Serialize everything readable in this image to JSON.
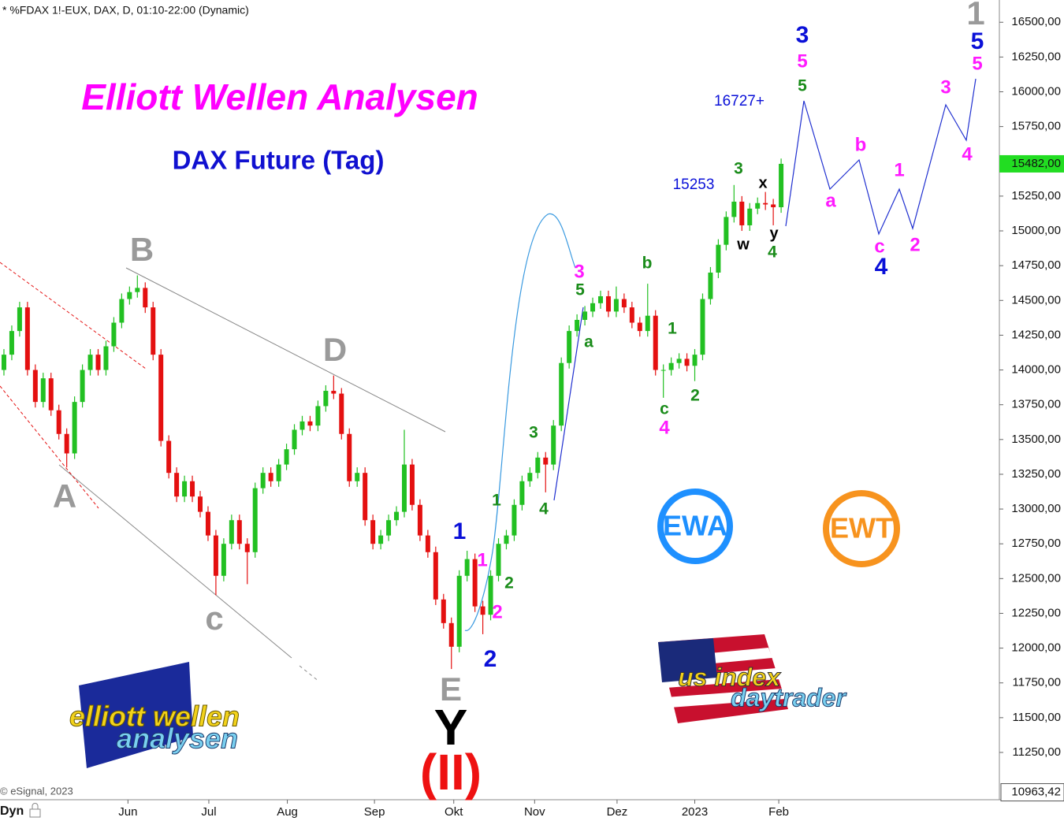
{
  "header": "* %FDAX 1!-EUX, DAX, D, 01:10-22:00 (Dynamic)",
  "copyright": "© eSignal, 2023",
  "dyn_label": "Dyn",
  "logos": {
    "ewa": "EWA",
    "ewt": "EWT",
    "ew_top": "elliott wellen",
    "ew_bottom": "analysen",
    "us_top": "us index",
    "us_bottom": "daytrader"
  },
  "chart_data": {
    "type": "candlestick",
    "title": "Elliott Wellen Analysen",
    "subtitle": "DAX Future (Tag)",
    "x": [
      0,
      1,
      2,
      3,
      4,
      5,
      6,
      7,
      8,
      9,
      10,
      11,
      12,
      13,
      14,
      15,
      16,
      17,
      18,
      19,
      20,
      21,
      22,
      23,
      24,
      25,
      26,
      27,
      28,
      29,
      30,
      31,
      32,
      33,
      34,
      35,
      36,
      37,
      38,
      39,
      40,
      41,
      42,
      43,
      44,
      45,
      46,
      47,
      48,
      49,
      50,
      51,
      52,
      53,
      54,
      55,
      56,
      57,
      58,
      59,
      60,
      61,
      62,
      63,
      64,
      65,
      66,
      67,
      68,
      69,
      70,
      71,
      72,
      73,
      74,
      75,
      76,
      77,
      78,
      79,
      80,
      81,
      82,
      83,
      84,
      85,
      86,
      87,
      88,
      89,
      90,
      91,
      92,
      93,
      94,
      95,
      96,
      97,
      98,
      99
    ],
    "open": [
      14000,
      14110,
      14280,
      14450,
      14000,
      13770,
      13940,
      13710,
      13540,
      13400,
      13770,
      14000,
      14110,
      14000,
      14170,
      14340,
      14510,
      14560,
      14590,
      14450,
      14110,
      13490,
      13260,
      13090,
      13200,
      13090,
      12980,
      12810,
      12520,
      12750,
      12920,
      12750,
      12690,
      13150,
      13260,
      13200,
      13320,
      13430,
      13570,
      13630,
      13600,
      13740,
      13850,
      13830,
      13540,
      13200,
      13260,
      12920,
      12750,
      12810,
      12920,
      12980,
      13320,
      13030,
      12810,
      12690,
      12350,
      12180,
      12010,
      12520,
      12640,
      12300,
      12240,
      12520,
      12750,
      12810,
      13030,
      13200,
      13260,
      13370,
      13320,
      13600,
      14050,
      14280,
      14360,
      14420,
      14480,
      14530,
      14420,
      14510,
      14450,
      14340,
      14280,
      14390,
      14000,
      14000,
      14050,
      14080,
      14030,
      14110,
      14510,
      14700,
      14900,
      15100,
      15210,
      15040,
      15160,
      15200,
      15190,
      15170
    ],
    "high": [
      14150,
      14320,
      14490,
      14490,
      14040,
      13980,
      13980,
      13750,
      13580,
      13810,
      14040,
      14150,
      14150,
      14210,
      14380,
      14550,
      14600,
      14680,
      14630,
      14490,
      14150,
      13530,
      13300,
      13240,
      13240,
      13130,
      13020,
      12850,
      12790,
      12960,
      12960,
      12790,
      13190,
      13300,
      13300,
      13360,
      13470,
      13610,
      13670,
      13670,
      13780,
      13890,
      13960,
      13870,
      13580,
      13300,
      13300,
      12960,
      12850,
      12960,
      13020,
      13570,
      13360,
      13070,
      12850,
      12730,
      12390,
      12220,
      12560,
      12700,
      12680,
      12340,
      12560,
      12790,
      12850,
      13070,
      13240,
      13300,
      13410,
      13410,
      13640,
      14090,
      14320,
      14400,
      14460,
      14520,
      14570,
      14570,
      14600,
      14550,
      14490,
      14380,
      14620,
      14430,
      14040,
      14090,
      14120,
      14120,
      14150,
      14550,
      14740,
      14940,
      15140,
      15330,
      15250,
      15200,
      15240,
      15280,
      15230,
      15520
    ],
    "low": [
      13960,
      14070,
      14240,
      13960,
      13730,
      13730,
      13670,
      13500,
      13300,
      13360,
      13730,
      13960,
      13960,
      13960,
      14130,
      14300,
      14470,
      14520,
      14410,
      14070,
      13450,
      13220,
      13050,
      13050,
      13050,
      12940,
      12770,
      12380,
      12480,
      12710,
      12710,
      12460,
      12650,
      13110,
      13160,
      13160,
      13280,
      13390,
      13530,
      13560,
      13560,
      13700,
      13790,
      13500,
      13160,
      13160,
      12880,
      12710,
      12710,
      12770,
      12880,
      12940,
      12990,
      12770,
      12650,
      12310,
      12140,
      11850,
      11970,
      12480,
      12260,
      12100,
      12200,
      12480,
      12710,
      12770,
      12990,
      13160,
      13220,
      13120,
      13280,
      13560,
      14010,
      14240,
      14320,
      14380,
      14440,
      14380,
      14380,
      14410,
      14300,
      14240,
      14240,
      13960,
      13800,
      13960,
      14010,
      13990,
      13920,
      14070,
      14470,
      14660,
      14860,
      15060,
      15000,
      15000,
      15120,
      15150,
      15040,
      15130
    ],
    "close": [
      14110,
      14280,
      14450,
      14000,
      13770,
      13940,
      13710,
      13540,
      13400,
      13770,
      14000,
      14110,
      14000,
      14170,
      14340,
      14510,
      14560,
      14590,
      14450,
      14110,
      13490,
      13260,
      13090,
      13200,
      13090,
      12980,
      12810,
      12520,
      12750,
      12920,
      12750,
      12690,
      13150,
      13260,
      13200,
      13320,
      13430,
      13570,
      13630,
      13600,
      13740,
      13850,
      13830,
      13540,
      13200,
      13260,
      12920,
      12750,
      12810,
      12920,
      12980,
      13320,
      13030,
      12810,
      12690,
      12350,
      12180,
      12010,
      12520,
      12640,
      12300,
      12240,
      12520,
      12750,
      12810,
      13030,
      13200,
      13260,
      13370,
      13320,
      13600,
      14050,
      14280,
      14360,
      14420,
      14480,
      14530,
      14420,
      14510,
      14450,
      14340,
      14280,
      14390,
      14000,
      14000,
      14050,
      14080,
      14030,
      14110,
      14510,
      14700,
      14900,
      15100,
      15210,
      15040,
      15160,
      15200,
      15190,
      15170,
      15482
    ],
    "up_color": "#22c022",
    "down_color": "#e41010",
    "xlim": [
      -0.5,
      126.8
    ],
    "xticks": [
      {
        "value": 15.8,
        "label": "Jun"
      },
      {
        "value": 26.1,
        "label": "Jul"
      },
      {
        "value": 36.1,
        "label": "Aug"
      },
      {
        "value": 47.2,
        "label": "Sep"
      },
      {
        "value": 57.3,
        "label": "Okt"
      },
      {
        "value": 67.6,
        "label": "Nov"
      },
      {
        "value": 78.1,
        "label": "Dez"
      },
      {
        "value": 88.0,
        "label": "2023"
      },
      {
        "value": 98.7,
        "label": "Feb"
      }
    ],
    "ylim": [
      10910,
      16660
    ],
    "yticks": [
      {
        "value": 16500,
        "label": "16500,00"
      },
      {
        "value": 16250,
        "label": "16250,00"
      },
      {
        "value": 16000,
        "label": "16000,00"
      },
      {
        "value": 15750,
        "label": "15750,00"
      },
      {
        "value": 15500,
        "label": "15500,00"
      },
      {
        "value": 15250,
        "label": "15250,00"
      },
      {
        "value": 15000,
        "label": "15000,00"
      },
      {
        "value": 14750,
        "label": "14750,00"
      },
      {
        "value": 14500,
        "label": "14500,00"
      },
      {
        "value": 14250,
        "label": "14250,00"
      },
      {
        "value": 14000,
        "label": "14000,00"
      },
      {
        "value": 13750,
        "label": "13750,00"
      },
      {
        "value": 13500,
        "label": "13500,00"
      },
      {
        "value": 13250,
        "label": "13250,00"
      },
      {
        "value": 13000,
        "label": "13000,00"
      },
      {
        "value": 12750,
        "label": "12750,00"
      },
      {
        "value": 12500,
        "label": "12500,00"
      },
      {
        "value": 12250,
        "label": "12250,00"
      },
      {
        "value": 12000,
        "label": "12000,00"
      },
      {
        "value": 11750,
        "label": "11750,00"
      },
      {
        "value": 11500,
        "label": "11500,00"
      },
      {
        "value": 11250,
        "label": "11250,00"
      }
    ],
    "last_price_label": "15482,00",
    "bottom_price": {
      "value": 10963.42,
      "label": "10963,42"
    },
    "annotations": [
      "B",
      "D",
      "A",
      "c",
      "E",
      "1",
      "Y",
      "(II)",
      "1",
      "2",
      "3",
      "4",
      "5",
      "1",
      "2",
      "3",
      "4",
      "5",
      "a",
      "b",
      "c",
      "1",
      "2",
      "3",
      "4",
      "5",
      "1",
      "2",
      "3",
      "4",
      "5",
      "a",
      "b",
      "c",
      "1",
      "2",
      "3",
      "4",
      "5",
      "x",
      "w",
      "y",
      "16727+",
      "15253"
    ]
  }
}
